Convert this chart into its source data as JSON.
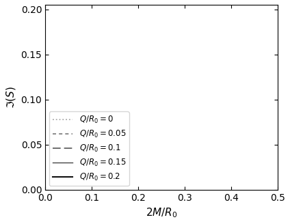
{
  "xlabel": "$2M/R_0$",
  "ylabel": "$\\Im(S)$",
  "xlim": [
    0,
    0.5
  ],
  "ylim": [
    0,
    0.205
  ],
  "xticks": [
    0,
    0.1,
    0.2,
    0.3,
    0.4,
    0.5
  ],
  "yticks": [
    0,
    0.05,
    0.1,
    0.15,
    0.2
  ],
  "curves": [
    {
      "q": 0.0,
      "linestyle": "dotted",
      "color": "#aaaaaa",
      "linewidth": 1.3,
      "label": "$Q/R_0 = 0$",
      "dashes": null
    },
    {
      "q": 0.05,
      "linestyle": "dashed",
      "color": "#777777",
      "linewidth": 1.2,
      "label": "$Q/R_0 = 0.05$",
      "dashes": [
        3,
        2.5
      ]
    },
    {
      "q": 0.1,
      "linestyle": "dashed",
      "color": "#555555",
      "linewidth": 1.2,
      "label": "$Q/R_0 = 0.1$",
      "dashes": [
        7,
        3
      ]
    },
    {
      "q": 0.15,
      "linestyle": "solid",
      "color": "#444444",
      "linewidth": 1.0,
      "label": "$Q/R_0 = 0.15$",
      "dashes": null
    },
    {
      "q": 0.2,
      "linestyle": "solid",
      "color": "#111111",
      "linewidth": 1.5,
      "label": "$Q/R_0 = 0.2$",
      "dashes": null
    }
  ],
  "legend_loc": "lower left",
  "legend_fontsize": 8.5,
  "figsize": [
    4.24,
    3.28
  ],
  "dpi": 100
}
